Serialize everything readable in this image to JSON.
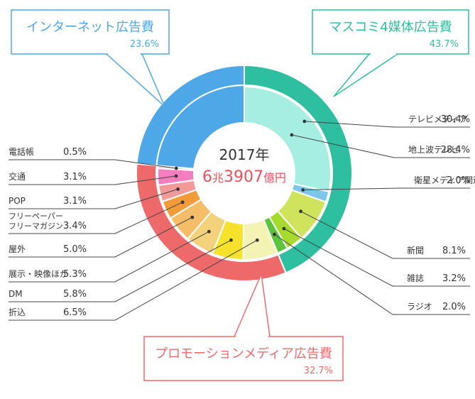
{
  "chart_data": {
    "type": "pie",
    "title": "",
    "center": {
      "year": "2017年",
      "value_num1": "6",
      "value_unit1": "兆",
      "value_num2": "3907",
      "value_unit2": "億円"
    },
    "groups": [
      {
        "name": "マスコミ4媒体広告費",
        "value": 43.7,
        "value_label": "43.7%",
        "color": "#2ebea0"
      },
      {
        "name": "プロモーションメディア広告費",
        "value": 32.7,
        "value_label": "32.7%",
        "color": "#ee6a6a"
      },
      {
        "name": "インターネット広告費",
        "value": 23.6,
        "value_label": "23.6%",
        "color": "#4ea7e6"
      }
    ],
    "subgroups": [
      {
        "name": "テレビメディア",
        "value": 30.4,
        "value_label": "30.4%",
        "color": "#6ed9c6",
        "group": "マスコミ4媒体広告費"
      }
    ],
    "segments": [
      {
        "name": "地上波テレビ",
        "value": 28.4,
        "value_label": "28.4%",
        "color": "#a6eee1"
      },
      {
        "name": "衛星メディア関連",
        "value": 2.0,
        "value_label": "2.0%",
        "color": "#7cc6ea"
      },
      {
        "name": "新聞",
        "value": 8.1,
        "value_label": "8.1%",
        "color": "#d0e35d"
      },
      {
        "name": "雑誌",
        "value": 3.2,
        "value_label": "3.2%",
        "color": "#a6db2e"
      },
      {
        "name": "ラジオ",
        "value": 2.0,
        "value_label": "2.0%",
        "color": "#59c43c"
      },
      {
        "name": "折込",
        "value": 6.5,
        "value_label": "6.5%",
        "color": "#f3f3b4"
      },
      {
        "name": "DM",
        "value": 5.8,
        "value_label": "5.8%",
        "color": "#f6e22a"
      },
      {
        "name": "展示・映像ほか",
        "value": 5.3,
        "value_label": "5.3%",
        "color": "#f4d27c"
      },
      {
        "name": "屋外",
        "value": 5.0,
        "value_label": "5.0%",
        "color": "#f5bd67"
      },
      {
        "name": "フリーペーパー\nフリーマガジン",
        "value": 3.4,
        "value_label": "3.4%",
        "color": "#f29b3a"
      },
      {
        "name": "POP",
        "value": 3.1,
        "value_label": "3.1%",
        "color": "#f29a9a"
      },
      {
        "name": "交通",
        "value": 3.1,
        "value_label": "3.1%",
        "color": "#f57ec0"
      },
      {
        "name": "電話帳",
        "value": 0.5,
        "value_label": "0.5%",
        "color": "#f8c9dc"
      },
      {
        "name": "インターネット広告費",
        "value": 23.6,
        "value_label": "",
        "color": "#4ea7e6"
      }
    ]
  }
}
